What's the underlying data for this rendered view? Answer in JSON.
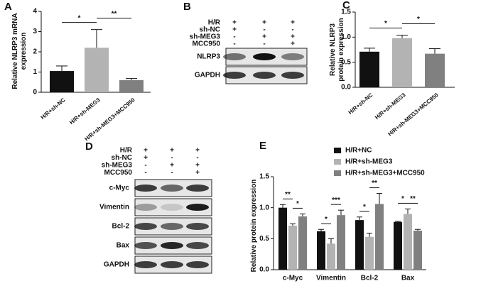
{
  "chart_data": [
    {
      "type": "bar",
      "panel": "A",
      "y_label": "Relative NLRP3 mRNA expression",
      "categories": [
        "H/R+sh-NC",
        "H/R+sh-MEG3",
        "H/R+sh-MEG3+MCC950"
      ],
      "values": [
        1.05,
        2.2,
        0.6
      ],
      "errors": [
        0.25,
        0.9,
        0.08
      ],
      "colors": [
        "#111111",
        "#b3b3b3",
        "#808080"
      ],
      "ylim": [
        0,
        4
      ],
      "yticks": [
        0,
        1,
        2,
        3,
        4
      ],
      "annotations": [
        {
          "text": "*",
          "between": [
            0,
            1
          ]
        },
        {
          "text": "**",
          "between": [
            1,
            2
          ]
        }
      ]
    },
    {
      "type": "bar",
      "panel": "C",
      "y_label": "Relative NLRP3 protein expression",
      "categories": [
        "H/R+sh-NC",
        "H/R+sh-MEG3",
        "H/R+sh-MEG3+MCC950"
      ],
      "values": [
        0.71,
        0.98,
        0.67
      ],
      "errors": [
        0.07,
        0.06,
        0.1
      ],
      "colors": [
        "#111111",
        "#b3b3b3",
        "#808080"
      ],
      "ylim": [
        0,
        1.5
      ],
      "yticks": [
        {
          "value": 0,
          "label": "0.0"
        },
        {
          "value": 0.5,
          "label": "0.5"
        },
        {
          "value": 1,
          "label": "1.0"
        },
        {
          "value": 1.5,
          "label": "1.5"
        }
      ],
      "annotations": [
        {
          "text": "*",
          "between": [
            0,
            1
          ]
        },
        {
          "text": "*",
          "between": [
            1,
            2
          ]
        }
      ]
    },
    {
      "type": "grouped_bar",
      "panel": "E",
      "y_label": "Relative protein expression",
      "categories": [
        "c-Myc",
        "Vimentin",
        "Bcl-2",
        "Bax"
      ],
      "series": [
        {
          "name": "H/R+NC",
          "color": "#111111",
          "values": [
            1.0,
            0.62,
            0.8,
            0.77
          ],
          "errors": [
            0.05,
            0.03,
            0.05,
            0.01
          ]
        },
        {
          "name": "H/R+sh-MEG3",
          "color": "#b3b3b3",
          "values": [
            0.71,
            0.42,
            0.53,
            0.9
          ],
          "errors": [
            0.03,
            0.08,
            0.06,
            0.08
          ]
        },
        {
          "name": "H/R+sh-MEG3+MCC950",
          "color": "#808080",
          "values": [
            0.86,
            0.88,
            1.06,
            0.63
          ],
          "errors": [
            0.04,
            0.08,
            0.17,
            0.02
          ]
        }
      ],
      "ylim": [
        0,
        1.5
      ],
      "yticks": [
        {
          "value": 0,
          "label": "0.0"
        },
        {
          "value": 0.5,
          "label": "0.5"
        },
        {
          "value": 1,
          "label": "1.0"
        },
        {
          "value": 1.5,
          "label": "1.5"
        }
      ],
      "annotations": [
        {
          "group": 0,
          "between": [
            0,
            1
          ],
          "text": "**"
        },
        {
          "group": 0,
          "between": [
            1,
            2
          ],
          "text": "*"
        },
        {
          "group": 1,
          "between": [
            0,
            1
          ],
          "text": "*"
        },
        {
          "group": 1,
          "between": [
            1,
            2
          ],
          "text": "***"
        },
        {
          "group": 2,
          "between": [
            0,
            1
          ],
          "text": "*"
        },
        {
          "group": 2,
          "between": [
            1,
            2
          ],
          "text": "**"
        },
        {
          "group": 3,
          "between": [
            0,
            1
          ],
          "text": "*"
        },
        {
          "group": 3,
          "between": [
            1,
            2
          ],
          "text": "**"
        }
      ]
    }
  ],
  "blots": [
    {
      "panel": "B",
      "treatments": [
        {
          "name": "H/R",
          "signs": [
            "+",
            "+",
            "+"
          ]
        },
        {
          "name": "sh-NC",
          "signs": [
            "+",
            "-",
            "-"
          ]
        },
        {
          "name": "sh-MEG3",
          "signs": [
            "-",
            "+",
            "+"
          ]
        },
        {
          "name": "MCC950",
          "signs": [
            "-",
            "-",
            "+"
          ]
        }
      ],
      "bands": [
        "NLRP3",
        "GAPDH"
      ]
    },
    {
      "panel": "D",
      "treatments": [
        {
          "name": "H/R",
          "signs": [
            "+",
            "+",
            "+"
          ]
        },
        {
          "name": "sh-NC",
          "signs": [
            "+",
            "-",
            "-"
          ]
        },
        {
          "name": "sh-MEG3",
          "signs": [
            "-",
            "+",
            "+"
          ]
        },
        {
          "name": "MCC950",
          "signs": [
            "-",
            "-",
            "+"
          ]
        }
      ],
      "bands": [
        "c-Myc",
        "Vimentin",
        "Bcl-2",
        "Bax",
        "GAPDH"
      ]
    }
  ]
}
